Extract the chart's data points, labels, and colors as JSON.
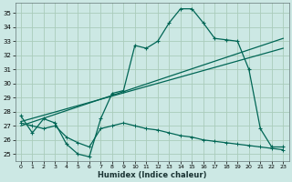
{
  "xlabel": "Humidex (Indice chaleur)",
  "bg_color": "#cce8e4",
  "grid_color": "#aaccbb",
  "line_color": "#006655",
  "xlim": [
    -0.5,
    23.5
  ],
  "ylim": [
    24.5,
    35.7
  ],
  "xtick_vals": [
    0,
    1,
    2,
    3,
    4,
    5,
    6,
    7,
    8,
    9,
    10,
    11,
    12,
    13,
    14,
    15,
    16,
    17,
    18,
    19,
    20,
    21,
    22,
    23
  ],
  "ytick_vals": [
    25,
    26,
    27,
    28,
    29,
    30,
    31,
    32,
    33,
    34,
    35
  ],
  "curve1_x": [
    0,
    1,
    2,
    3,
    4,
    5,
    6,
    7,
    8,
    9,
    10,
    11,
    12,
    13,
    14,
    15,
    16,
    17,
    18,
    19,
    20,
    21,
    22,
    23
  ],
  "curve1_y": [
    27.7,
    26.5,
    27.5,
    27.2,
    25.7,
    25.0,
    24.8,
    27.5,
    29.3,
    29.5,
    32.7,
    32.5,
    33.0,
    34.3,
    35.3,
    35.3,
    34.3,
    33.2,
    33.1,
    33.0,
    31.0,
    26.8,
    25.5,
    25.5
  ],
  "curve2_x": [
    0,
    23
  ],
  "curve2_y": [
    27.0,
    33.2
  ],
  "curve3_x": [
    0,
    23
  ],
  "curve3_y": [
    27.3,
    32.5
  ],
  "curve4_x": [
    0,
    1,
    2,
    3,
    4,
    5,
    6,
    7,
    8,
    9,
    10,
    11,
    12,
    13,
    14,
    15,
    16,
    17,
    18,
    19,
    20,
    21,
    22,
    23
  ],
  "curve4_y": [
    27.2,
    27.0,
    26.8,
    27.0,
    26.2,
    25.8,
    25.5,
    26.8,
    27.0,
    27.2,
    27.0,
    26.8,
    26.7,
    26.5,
    26.3,
    26.2,
    26.0,
    25.9,
    25.8,
    25.7,
    25.6,
    25.5,
    25.4,
    25.3
  ]
}
